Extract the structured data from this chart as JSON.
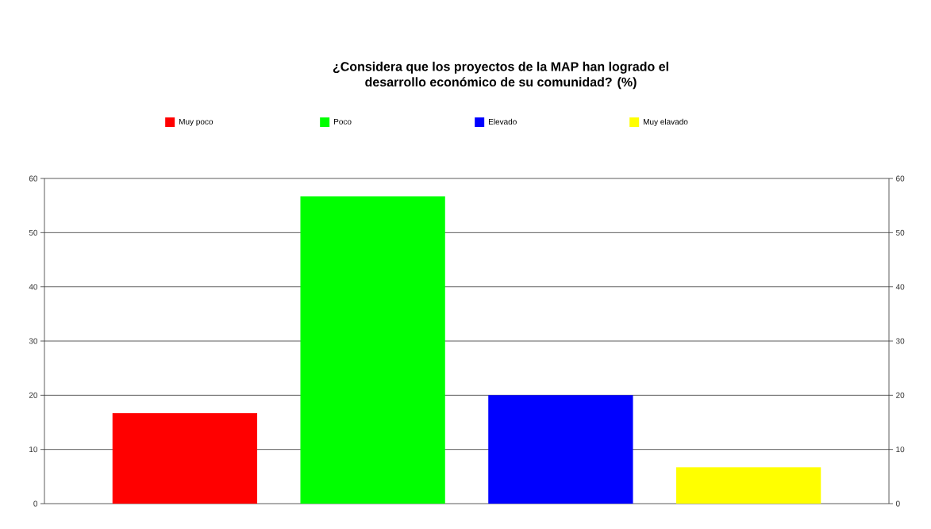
{
  "chart_data": {
    "type": "bar",
    "title": "¿Considera que los proyectos de la MAP han logrado el desarrollo económico de su comunidad? (%)",
    "categories": [
      null
    ],
    "series": [
      {
        "name": "Muy poco",
        "color": "#ff0000",
        "values": [
          16.7
        ]
      },
      {
        "name": "Poco",
        "color": "#00ff00",
        "values": [
          56.7
        ]
      },
      {
        "name": "Elevado",
        "color": "#0000ff",
        "values": [
          20
        ]
      },
      {
        "name": "Muy elavado",
        "color": "#ffff00",
        "values": [
          6.7
        ]
      }
    ],
    "ylim": [
      0,
      60
    ],
    "yticks": [
      0,
      10,
      20,
      30,
      40,
      50,
      60
    ],
    "y2lim": [
      0,
      60
    ],
    "y2ticks": [
      0,
      10,
      20,
      30,
      40,
      50,
      60
    ],
    "grid": "y",
    "legend": "top",
    "tick_labels": "y"
  }
}
